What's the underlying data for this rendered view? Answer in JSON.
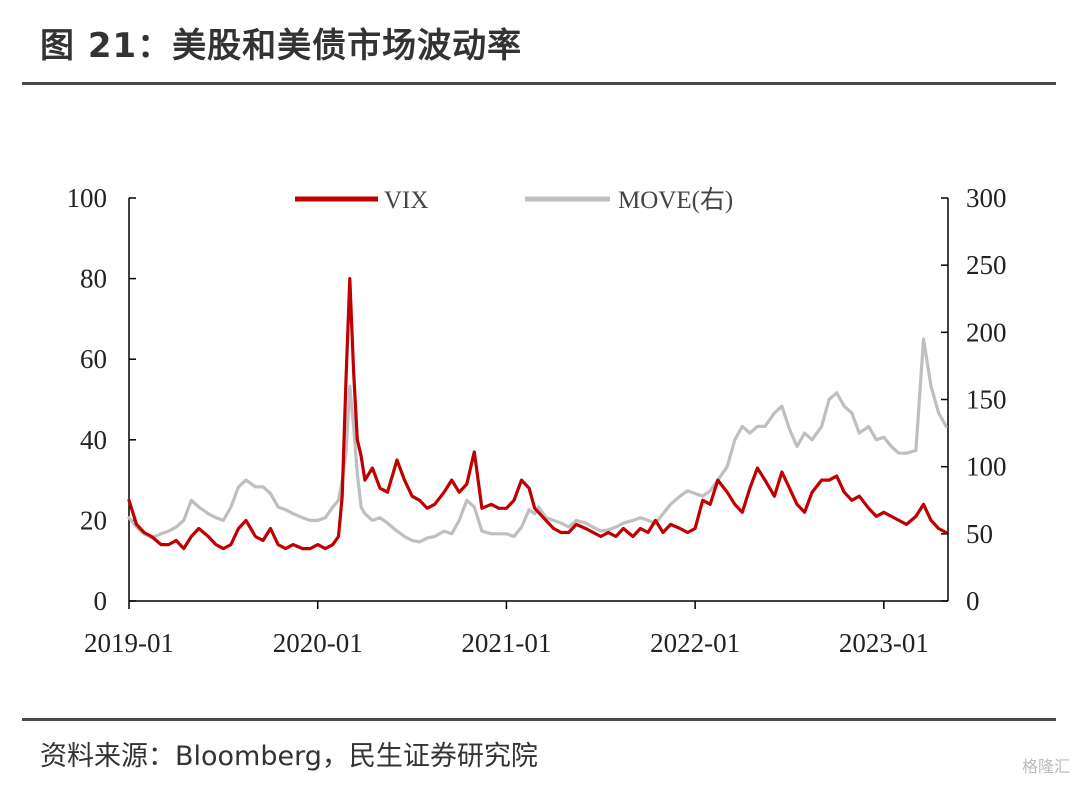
{
  "header": {
    "title": "图 21：美股和美债市场波动率"
  },
  "footer": {
    "source": "资料来源：Bloomberg，民生证券研究院",
    "watermark": "格隆汇"
  },
  "colors": {
    "vix": "#c00000",
    "move": "#bfbfbf",
    "axis": "#000000",
    "text": "#333333"
  },
  "chart_data": {
    "type": "line",
    "title": "",
    "x_tick_labels": [
      "2019-01",
      "2020-01",
      "2021-01",
      "2022-01",
      "2023-01"
    ],
    "x_tick_values": [
      2019.0,
      2020.0,
      2021.0,
      2022.0,
      2023.0
    ],
    "xlim": [
      2019.0,
      2023.34
    ],
    "y_left": {
      "label": "",
      "ylim": [
        0,
        100
      ],
      "ticks": [
        0,
        20,
        40,
        60,
        80,
        100
      ]
    },
    "y_right": {
      "label": "",
      "ylim": [
        0,
        300
      ],
      "ticks": [
        0,
        50,
        100,
        150,
        200,
        250,
        300
      ]
    },
    "legend": {
      "position": "top"
    },
    "series": [
      {
        "name": "VIX",
        "axis": "left",
        "color": "#c00000",
        "x": [
          2019.0,
          2019.04,
          2019.08,
          2019.12,
          2019.17,
          2019.21,
          2019.25,
          2019.29,
          2019.33,
          2019.37,
          2019.42,
          2019.46,
          2019.5,
          2019.54,
          2019.58,
          2019.62,
          2019.67,
          2019.71,
          2019.75,
          2019.79,
          2019.83,
          2019.87,
          2019.92,
          2019.96,
          2020.0,
          2020.04,
          2020.08,
          2020.11,
          2020.13,
          2020.15,
          2020.17,
          2020.19,
          2020.21,
          2020.23,
          2020.25,
          2020.29,
          2020.33,
          2020.37,
          2020.42,
          2020.46,
          2020.5,
          2020.54,
          2020.58,
          2020.62,
          2020.67,
          2020.71,
          2020.75,
          2020.79,
          2020.83,
          2020.87,
          2020.92,
          2020.96,
          2021.0,
          2021.04,
          2021.08,
          2021.12,
          2021.15,
          2021.17,
          2021.21,
          2021.25,
          2021.29,
          2021.33,
          2021.37,
          2021.42,
          2021.46,
          2021.5,
          2021.54,
          2021.58,
          2021.62,
          2021.67,
          2021.71,
          2021.75,
          2021.79,
          2021.83,
          2021.87,
          2021.92,
          2021.96,
          2022.0,
          2022.04,
          2022.08,
          2022.12,
          2022.17,
          2022.21,
          2022.25,
          2022.29,
          2022.33,
          2022.37,
          2022.42,
          2022.46,
          2022.5,
          2022.54,
          2022.58,
          2022.62,
          2022.67,
          2022.71,
          2022.75,
          2022.79,
          2022.83,
          2022.87,
          2022.92,
          2022.96,
          2023.0,
          2023.04,
          2023.08,
          2023.12,
          2023.17,
          2023.21,
          2023.25,
          2023.29,
          2023.33
        ],
        "values": [
          25,
          19,
          17,
          16,
          14,
          14,
          15,
          13,
          16,
          18,
          16,
          14,
          13,
          14,
          18,
          20,
          16,
          15,
          18,
          14,
          13,
          14,
          13,
          13,
          14,
          13,
          14,
          16,
          26,
          55,
          80,
          57,
          40,
          36,
          30,
          33,
          28,
          27,
          35,
          30,
          26,
          25,
          23,
          24,
          27,
          30,
          27,
          29,
          37,
          23,
          24,
          23,
          23,
          25,
          30,
          28,
          23,
          22,
          20,
          18,
          17,
          17,
          19,
          18,
          17,
          16,
          17,
          16,
          18,
          16,
          18,
          17,
          20,
          17,
          19,
          18,
          17,
          18,
          25,
          24,
          30,
          27,
          24,
          22,
          28,
          33,
          30,
          26,
          32,
          28,
          24,
          22,
          27,
          30,
          30,
          31,
          27,
          25,
          26,
          23,
          21,
          22,
          21,
          20,
          19,
          21,
          24,
          20,
          18,
          17
        ]
      },
      {
        "name": "MOVE(右)",
        "axis": "right",
        "color": "#bfbfbf",
        "x": [
          2019.0,
          2019.04,
          2019.08,
          2019.12,
          2019.17,
          2019.21,
          2019.25,
          2019.29,
          2019.33,
          2019.37,
          2019.42,
          2019.46,
          2019.5,
          2019.54,
          2019.58,
          2019.62,
          2019.67,
          2019.71,
          2019.75,
          2019.79,
          2019.83,
          2019.87,
          2019.92,
          2019.96,
          2020.0,
          2020.04,
          2020.08,
          2020.11,
          2020.13,
          2020.15,
          2020.17,
          2020.19,
          2020.21,
          2020.23,
          2020.25,
          2020.29,
          2020.33,
          2020.37,
          2020.42,
          2020.46,
          2020.5,
          2020.54,
          2020.58,
          2020.62,
          2020.67,
          2020.71,
          2020.75,
          2020.79,
          2020.83,
          2020.87,
          2020.92,
          2020.96,
          2021.0,
          2021.04,
          2021.08,
          2021.12,
          2021.15,
          2021.17,
          2021.21,
          2021.25,
          2021.29,
          2021.33,
          2021.37,
          2021.42,
          2021.46,
          2021.5,
          2021.54,
          2021.58,
          2021.62,
          2021.67,
          2021.71,
          2021.75,
          2021.79,
          2021.83,
          2021.87,
          2021.92,
          2021.96,
          2022.0,
          2022.04,
          2022.08,
          2022.12,
          2022.17,
          2022.21,
          2022.25,
          2022.29,
          2022.33,
          2022.37,
          2022.42,
          2022.46,
          2022.5,
          2022.54,
          2022.58,
          2022.62,
          2022.67,
          2022.71,
          2022.75,
          2022.79,
          2022.83,
          2022.87,
          2022.92,
          2022.96,
          2023.0,
          2023.04,
          2023.08,
          2023.12,
          2023.17,
          2023.21,
          2023.25,
          2023.29,
          2023.33
        ],
        "values": [
          62,
          55,
          50,
          47,
          50,
          52,
          55,
          60,
          75,
          70,
          65,
          62,
          60,
          70,
          85,
          90,
          85,
          85,
          80,
          70,
          68,
          65,
          62,
          60,
          60,
          62,
          70,
          75,
          90,
          110,
          160,
          130,
          95,
          70,
          65,
          60,
          62,
          58,
          52,
          48,
          45,
          44,
          47,
          48,
          52,
          50,
          60,
          75,
          70,
          52,
          50,
          50,
          50,
          48,
          55,
          68,
          65,
          70,
          62,
          60,
          58,
          55,
          60,
          58,
          55,
          52,
          53,
          55,
          58,
          60,
          62,
          60,
          58,
          65,
          72,
          78,
          82,
          80,
          78,
          82,
          90,
          100,
          120,
          130,
          125,
          130,
          130,
          140,
          145,
          128,
          115,
          125,
          120,
          130,
          150,
          155,
          145,
          140,
          125,
          130,
          120,
          122,
          115,
          110,
          110,
          112,
          195,
          160,
          140,
          130
        ]
      }
    ]
  }
}
